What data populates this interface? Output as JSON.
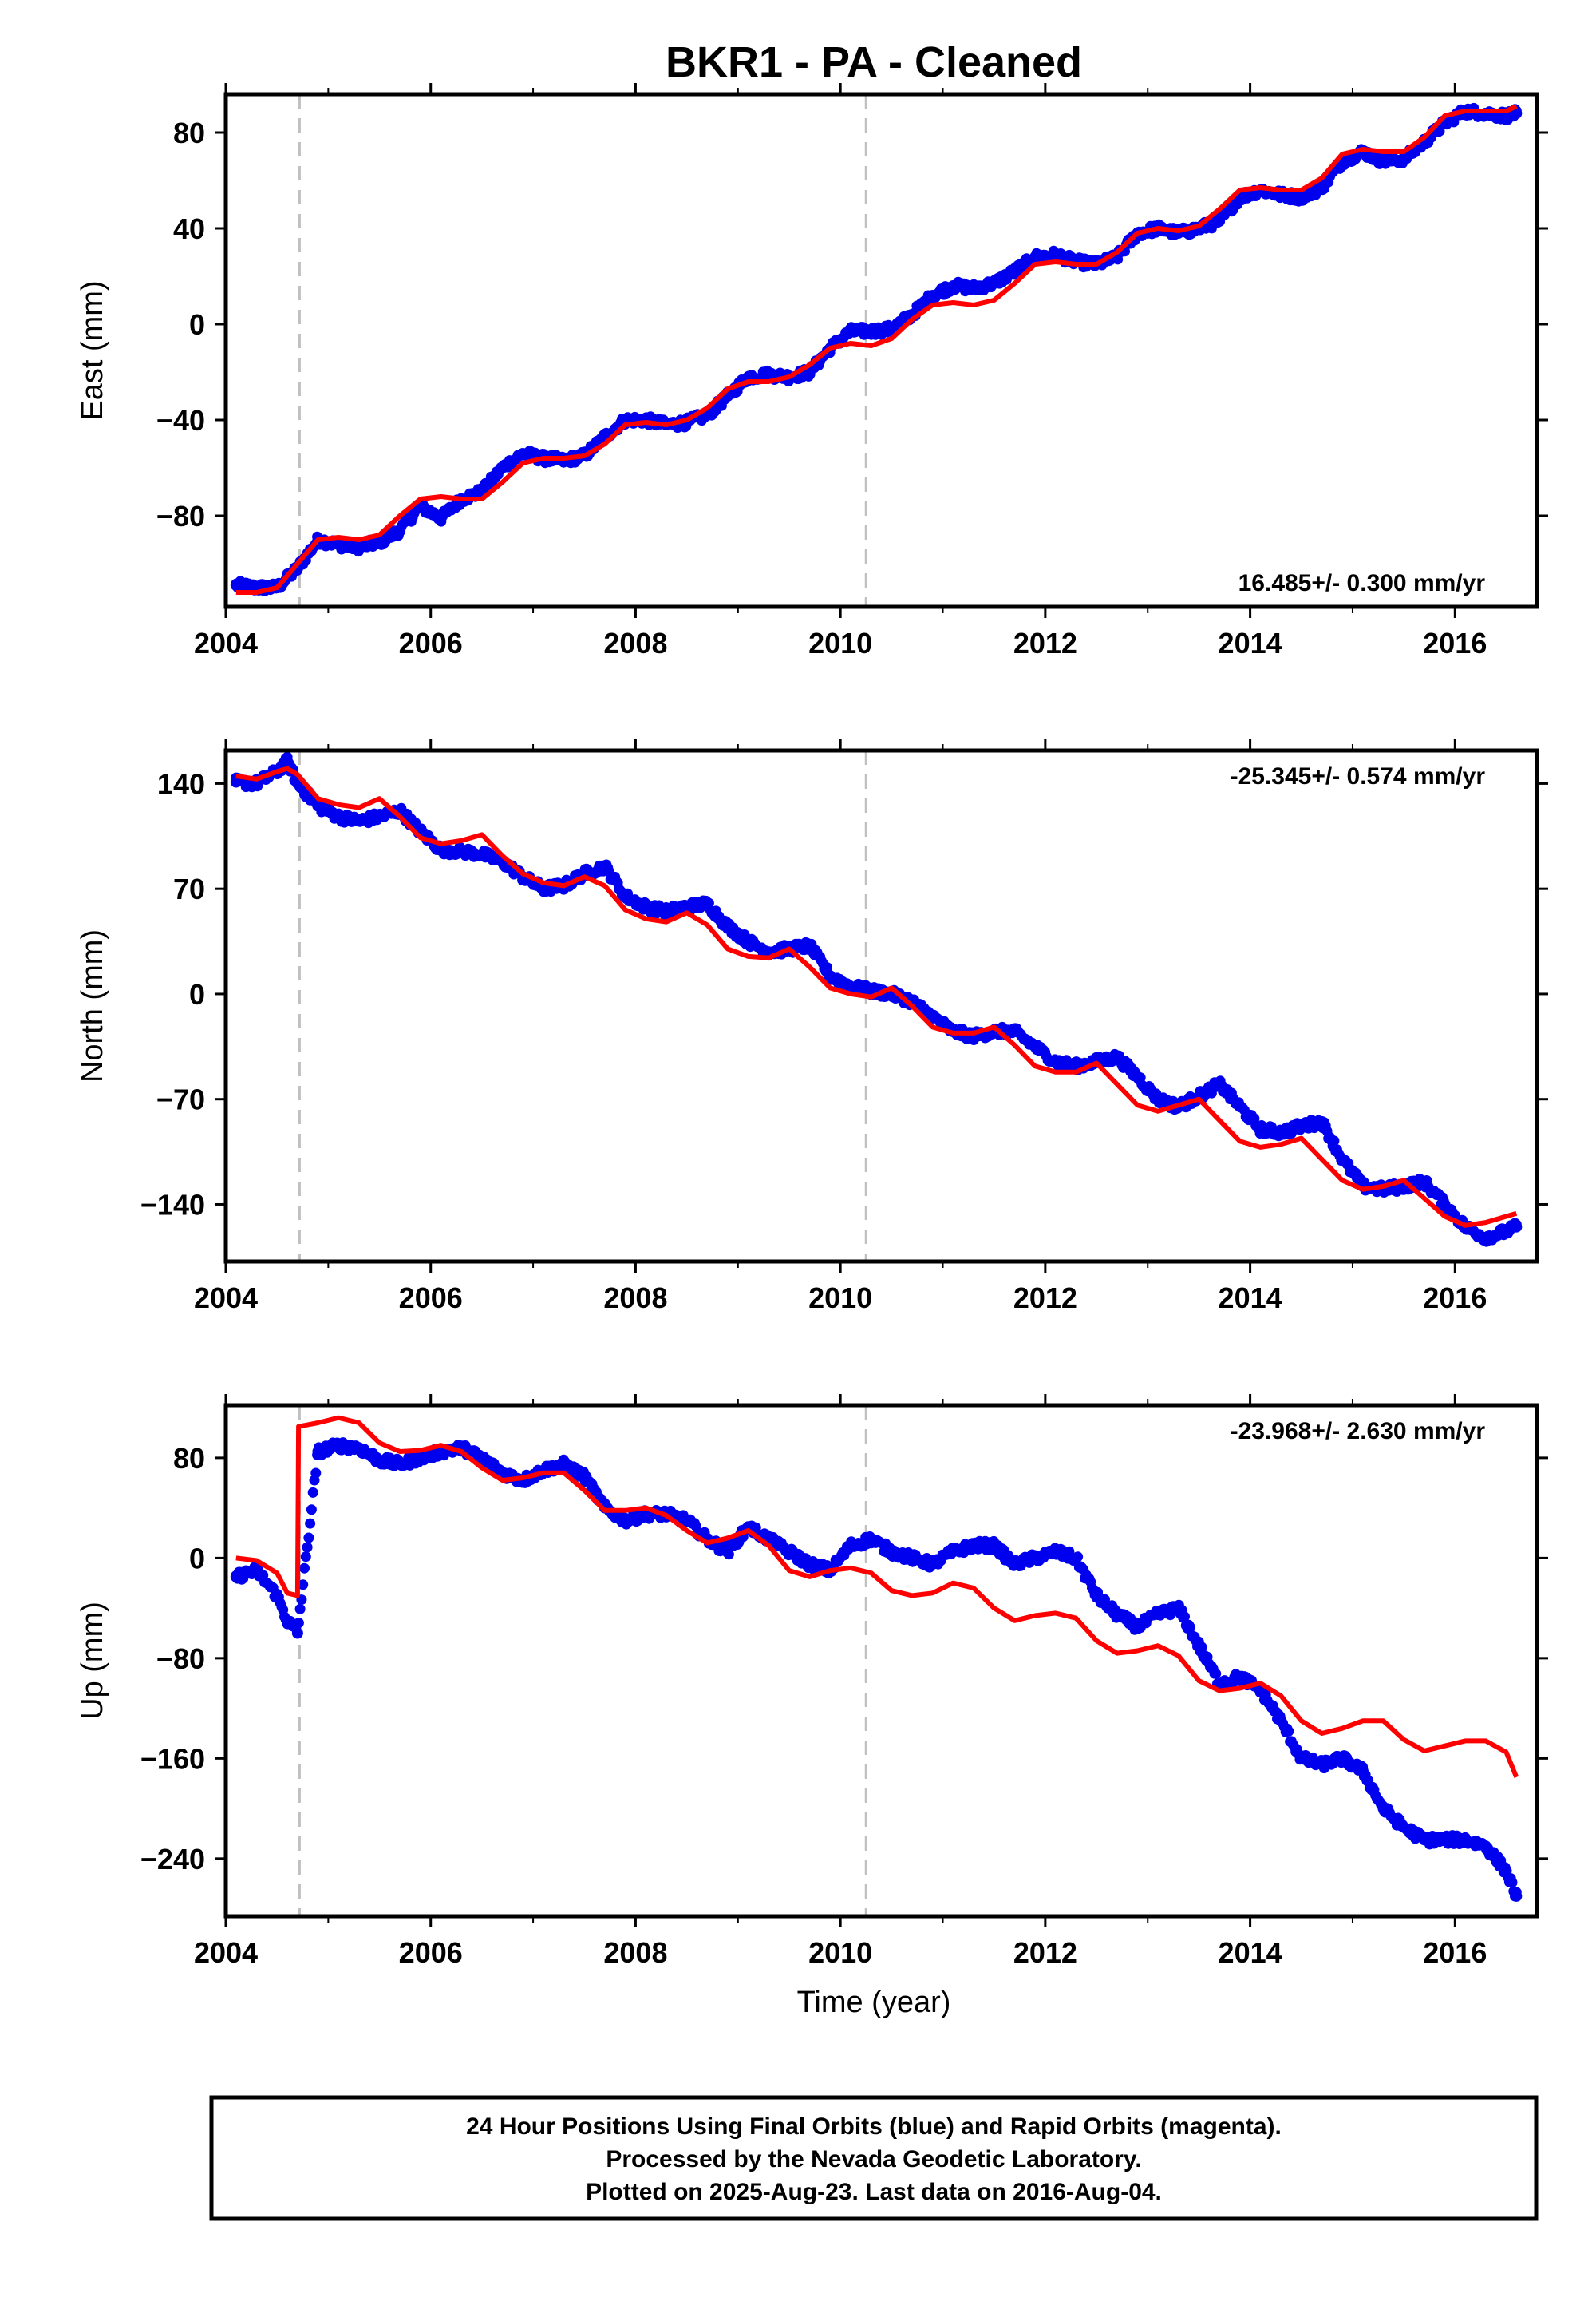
{
  "title": "BKR1  - PA - Cleaned",
  "xlabel": "Time (year)",
  "colors": {
    "data": "#0000ee",
    "model": "#ff0000",
    "event_line": "#c0c0c0",
    "frame": "#000000"
  },
  "footer": {
    "line1": "24 Hour Positions Using Final Orbits (blue) and Rapid Orbits (magenta).",
    "line2": "Processed by the Nevada Geodetic Laboratory.",
    "line3": "Plotted on 2025-Aug-23. Last data on 2016-Aug-04."
  },
  "chart_data": [
    {
      "type": "scatter",
      "component": "East",
      "ylabel": "East (mm)",
      "rate_label": "16.485+/- 0.300 mm/yr",
      "xlim": [
        2004.0,
        2016.8
      ],
      "ylim": [
        -118,
        96
      ],
      "xticks": [
        "2004",
        "2006",
        "2008",
        "2010",
        "2012",
        "2014",
        "2016"
      ],
      "yticks": [
        "80",
        "40",
        "0",
        "−40",
        "−80"
      ],
      "event_lines": [
        2004.72,
        2010.25
      ],
      "series": [
        {
          "kind": "observed",
          "x": [
            2004.1,
            2004.3,
            2004.5,
            2004.7,
            2004.9,
            2005.1,
            2005.3,
            2005.5,
            2005.7,
            2005.9,
            2006.1,
            2006.3,
            2006.5,
            2006.7,
            2006.9,
            2007.1,
            2007.3,
            2007.5,
            2007.7,
            2007.9,
            2008.1,
            2008.3,
            2008.5,
            2008.7,
            2008.9,
            2009.1,
            2009.3,
            2009.5,
            2009.7,
            2009.9,
            2010.1,
            2010.3,
            2010.5,
            2010.7,
            2010.9,
            2011.1,
            2011.3,
            2011.5,
            2011.7,
            2011.9,
            2012.1,
            2012.3,
            2012.5,
            2012.7,
            2012.9,
            2013.1,
            2013.3,
            2013.5,
            2013.7,
            2013.9,
            2014.1,
            2014.3,
            2014.5,
            2014.7,
            2014.9,
            2015.1,
            2015.3,
            2015.5,
            2015.7,
            2015.9,
            2016.1,
            2016.3,
            2016.5,
            2016.6
          ],
          "y": [
            -109,
            -110,
            -110,
            -102,
            -90,
            -92,
            -93,
            -91,
            -86,
            -76,
            -81,
            -73,
            -70,
            -60,
            -54,
            -56,
            -57,
            -55,
            -47,
            -40,
            -40,
            -42,
            -41,
            -38,
            -30,
            -22,
            -21,
            -22,
            -20,
            -10,
            -3,
            -3,
            -2,
            4,
            12,
            16,
            15,
            17,
            22,
            28,
            29,
            26,
            25,
            28,
            38,
            40,
            38,
            40,
            43,
            53,
            56,
            54,
            53,
            57,
            68,
            72,
            68,
            69,
            76,
            84,
            89,
            88,
            87,
            88
          ]
        },
        {
          "kind": "model",
          "x": [
            2004.1,
            2004.3,
            2004.5,
            2004.7,
            2004.9,
            2005.1,
            2005.3,
            2005.5,
            2005.7,
            2005.9,
            2006.1,
            2006.3,
            2006.5,
            2006.7,
            2006.9,
            2007.1,
            2007.3,
            2007.5,
            2007.7,
            2007.9,
            2008.1,
            2008.3,
            2008.5,
            2008.7,
            2008.9,
            2009.1,
            2009.3,
            2009.5,
            2009.7,
            2009.9,
            2010.1,
            2010.3,
            2010.5,
            2010.7,
            2010.9,
            2011.1,
            2011.3,
            2011.5,
            2011.7,
            2011.9,
            2012.1,
            2012.3,
            2012.5,
            2012.7,
            2012.9,
            2013.1,
            2013.3,
            2013.5,
            2013.7,
            2013.9,
            2014.1,
            2014.3,
            2014.5,
            2014.7,
            2014.9,
            2015.1,
            2015.3,
            2015.5,
            2015.7,
            2015.9,
            2016.1,
            2016.3,
            2016.5,
            2016.6
          ],
          "y": [
            -112,
            -112,
            -110,
            -100,
            -90,
            -89,
            -90,
            -88,
            -80,
            -73,
            -72,
            -73,
            -73,
            -66,
            -58,
            -56,
            -56,
            -55,
            -50,
            -42,
            -41,
            -42,
            -40,
            -35,
            -27,
            -24,
            -24,
            -22,
            -17,
            -10,
            -8,
            -9,
            -6,
            2,
            8,
            9,
            8,
            10,
            17,
            25,
            26,
            25,
            25,
            30,
            38,
            40,
            39,
            41,
            48,
            56,
            57,
            56,
            56,
            61,
            71,
            73,
            72,
            72,
            78,
            87,
            89,
            89,
            89,
            91
          ]
        }
      ]
    },
    {
      "type": "scatter",
      "component": "North",
      "ylabel": "North (mm)",
      "rate_label": "-25.345+/- 0.574 mm/yr",
      "xlim": [
        2004.0,
        2016.8
      ],
      "ylim": [
        -178,
        162
      ],
      "xticks": [
        "2004",
        "2006",
        "2008",
        "2010",
        "2012",
        "2014",
        "2016"
      ],
      "yticks": [
        "140",
        "70",
        "0",
        "−70",
        "−140"
      ],
      "event_lines": [
        2004.72,
        2010.25
      ],
      "series": [
        {
          "kind": "observed",
          "x": [
            2004.1,
            2004.3,
            2004.5,
            2004.6,
            2004.7,
            2004.9,
            2005.1,
            2005.3,
            2005.5,
            2005.7,
            2005.9,
            2006.1,
            2006.3,
            2006.5,
            2006.7,
            2006.9,
            2007.1,
            2007.3,
            2007.5,
            2007.7,
            2007.9,
            2008.1,
            2008.3,
            2008.5,
            2008.7,
            2008.9,
            2009.1,
            2009.3,
            2009.5,
            2009.7,
            2009.9,
            2010.1,
            2010.3,
            2010.5,
            2010.7,
            2010.9,
            2011.1,
            2011.3,
            2011.5,
            2011.7,
            2011.9,
            2012.1,
            2012.3,
            2012.5,
            2012.7,
            2012.9,
            2013.1,
            2013.3,
            2013.5,
            2013.7,
            2013.9,
            2014.1,
            2014.3,
            2014.5,
            2014.7,
            2014.9,
            2015.1,
            2015.3,
            2015.5,
            2015.7,
            2015.9,
            2016.1,
            2016.3,
            2016.5,
            2016.6
          ],
          "y": [
            141,
            140,
            148,
            155,
            140,
            125,
            118,
            115,
            118,
            122,
            108,
            96,
            95,
            93,
            88,
            78,
            70,
            72,
            80,
            85,
            65,
            58,
            55,
            58,
            60,
            45,
            35,
            28,
            30,
            32,
            12,
            5,
            2,
            0,
            -5,
            -15,
            -25,
            -28,
            -25,
            -25,
            -35,
            -45,
            -48,
            -45,
            -42,
            -55,
            -70,
            -75,
            -68,
            -60,
            -75,
            -90,
            -92,
            -88,
            -85,
            -110,
            -128,
            -130,
            -128,
            -125,
            -140,
            -155,
            -162,
            -158,
            -155
          ]
        },
        {
          "kind": "model",
          "x": [
            2004.1,
            2004.3,
            2004.5,
            2004.6,
            2004.7,
            2004.9,
            2005.1,
            2005.3,
            2005.5,
            2005.7,
            2005.9,
            2006.1,
            2006.3,
            2006.5,
            2006.7,
            2006.9,
            2007.1,
            2007.3,
            2007.5,
            2007.7,
            2007.9,
            2008.1,
            2008.3,
            2008.5,
            2008.7,
            2008.9,
            2009.1,
            2009.3,
            2009.5,
            2009.7,
            2009.9,
            2010.1,
            2010.3,
            2010.5,
            2010.7,
            2010.9,
            2011.1,
            2011.3,
            2011.5,
            2011.7,
            2011.9,
            2012.1,
            2012.3,
            2012.5,
            2012.7,
            2012.9,
            2013.1,
            2013.3,
            2013.5,
            2013.7,
            2013.9,
            2014.1,
            2014.3,
            2014.5,
            2014.7,
            2014.9,
            2015.1,
            2015.3,
            2015.5,
            2015.7,
            2015.9,
            2016.1,
            2016.3,
            2016.5,
            2016.6
          ],
          "y": [
            145,
            143,
            148,
            150,
            146,
            130,
            126,
            124,
            130,
            118,
            104,
            100,
            102,
            106,
            92,
            80,
            74,
            72,
            78,
            72,
            56,
            50,
            48,
            54,
            46,
            30,
            25,
            24,
            30,
            18,
            4,
            0,
            -2,
            4,
            -8,
            -22,
            -26,
            -26,
            -22,
            -34,
            -48,
            -52,
            -52,
            -46,
            -60,
            -74,
            -78,
            -74,
            -70,
            -84,
            -98,
            -102,
            -100,
            -96,
            -110,
            -124,
            -130,
            -128,
            -124,
            -136,
            -148,
            -154,
            -152,
            -148,
            -146
          ]
        }
      ]
    },
    {
      "type": "scatter",
      "component": "Up",
      "ylabel": "Up (mm)",
      "rate_label": "-23.968+/- 2.630 mm/yr",
      "xlim": [
        2004.0,
        2016.8
      ],
      "ylim": [
        -286,
        122
      ],
      "xticks": [
        "2004",
        "2006",
        "2008",
        "2010",
        "2012",
        "2014",
        "2016"
      ],
      "yticks": [
        "80",
        "0",
        "−80",
        "−160",
        "−240"
      ],
      "event_lines": [
        2004.72,
        2010.25
      ],
      "series": [
        {
          "kind": "observed",
          "x": [
            2004.1,
            2004.3,
            2004.5,
            2004.6,
            2004.7,
            2004.9,
            2005.1,
            2005.3,
            2005.5,
            2005.7,
            2005.9,
            2006.1,
            2006.3,
            2006.5,
            2006.7,
            2006.9,
            2007.1,
            2007.3,
            2007.5,
            2007.7,
            2007.9,
            2008.1,
            2008.3,
            2008.5,
            2008.7,
            2008.9,
            2009.1,
            2009.3,
            2009.5,
            2009.7,
            2009.9,
            2010.1,
            2010.3,
            2010.5,
            2010.7,
            2010.9,
            2011.1,
            2011.3,
            2011.5,
            2011.7,
            2011.9,
            2012.1,
            2012.3,
            2012.5,
            2012.7,
            2012.9,
            2013.1,
            2013.3,
            2013.5,
            2013.7,
            2013.9,
            2014.1,
            2014.3,
            2014.5,
            2014.7,
            2014.9,
            2015.1,
            2015.3,
            2015.5,
            2015.7,
            2015.9,
            2016.1,
            2016.3,
            2016.5,
            2016.6
          ],
          "y": [
            -15,
            -10,
            -30,
            -50,
            -60,
            85,
            90,
            88,
            78,
            75,
            80,
            85,
            88,
            80,
            68,
            62,
            70,
            75,
            65,
            40,
            30,
            35,
            35,
            30,
            15,
            5,
            25,
            15,
            5,
            -5,
            -10,
            10,
            15,
            5,
            0,
            -5,
            5,
            10,
            10,
            -5,
            0,
            5,
            0,
            -30,
            -45,
            -55,
            -45,
            -40,
            -70,
            -100,
            -95,
            -105,
            -130,
            -160,
            -165,
            -160,
            -170,
            -200,
            -215,
            -225,
            -225,
            -225,
            -230,
            -250,
            -270
          ]
        },
        {
          "kind": "model",
          "x": [
            2004.1,
            2004.3,
            2004.5,
            2004.6,
            2004.7,
            2004.71,
            2004.9,
            2005.1,
            2005.3,
            2005.5,
            2005.7,
            2005.9,
            2006.1,
            2006.3,
            2006.5,
            2006.7,
            2006.9,
            2007.1,
            2007.3,
            2007.5,
            2007.7,
            2007.9,
            2008.1,
            2008.3,
            2008.5,
            2008.7,
            2008.9,
            2009.1,
            2009.3,
            2009.5,
            2009.7,
            2009.9,
            2010.1,
            2010.3,
            2010.5,
            2010.7,
            2010.9,
            2011.1,
            2011.3,
            2011.5,
            2011.7,
            2011.9,
            2012.1,
            2012.3,
            2012.5,
            2012.7,
            2012.9,
            2013.1,
            2013.3,
            2013.5,
            2013.7,
            2013.9,
            2014.1,
            2014.3,
            2014.5,
            2014.7,
            2014.9,
            2015.1,
            2015.3,
            2015.5,
            2015.7,
            2015.9,
            2016.1,
            2016.3,
            2016.5,
            2016.6
          ],
          "y": [
            0,
            -2,
            -12,
            -28,
            -30,
            105,
            108,
            112,
            108,
            92,
            85,
            86,
            90,
            85,
            72,
            62,
            64,
            68,
            68,
            54,
            38,
            38,
            40,
            34,
            22,
            12,
            16,
            22,
            10,
            -10,
            -15,
            -10,
            -8,
            -12,
            -26,
            -30,
            -28,
            -20,
            -24,
            -40,
            -50,
            -46,
            -44,
            -48,
            -66,
            -76,
            -74,
            -70,
            -78,
            -98,
            -106,
            -104,
            -100,
            -110,
            -130,
            -140,
            -136,
            -130,
            -130,
            -145,
            -154,
            -150,
            -146,
            -146,
            -155,
            -175
          ]
        }
      ]
    }
  ]
}
